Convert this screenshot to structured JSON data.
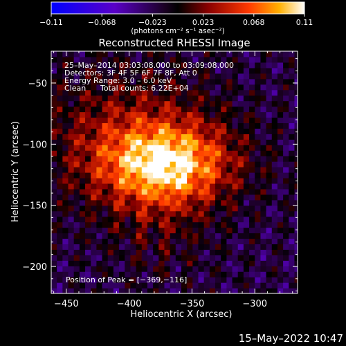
{
  "chart_data": {
    "type": "heatmap",
    "title": "Reconstructed RHESSI Image",
    "xlabel": "Heliocentric X (arcsec)",
    "ylabel": "Heliocentric Y (arcsec)",
    "xlim": [
      -462,
      -266
    ],
    "ylim": [
      -222,
      -24
    ],
    "xticks": [
      -450,
      -400,
      -350,
      -300
    ],
    "yticks": [
      -50,
      -100,
      -150,
      -200
    ],
    "xtick_labels": [
      "−450",
      "−400",
      "−350",
      "−300"
    ],
    "ytick_labels": [
      "−50",
      "−100",
      "−150",
      "−200"
    ],
    "colorbar": {
      "min": -0.11,
      "max": 0.11,
      "tick_labels": [
        "−0.11",
        "−0.068",
        "−0.023",
        "0.023",
        "0.068",
        "0.11"
      ],
      "units_label": "(photons cm⁻² s⁻¹ asec⁻²)"
    },
    "peak_position": [
      -369,
      -116
    ],
    "peak_value": 0.11,
    "colormap": "rhessi blue-white-red",
    "annotations": {
      "time_range": "25–May–2014 03:03:08.000 to 03:09:08.000",
      "detectors": "Detectors: 3F 4F 5F 6F 7F 8F, Att 0",
      "energy_range": "Energy Range: 3.0 – 6.0 keV",
      "clean_label": "Clean",
      "total_counts": "Total counts: 6.22E+04",
      "peak_label": "Position of Peak = [−369,−116]"
    }
  },
  "footer": {
    "date": "15–May–2022 10:47"
  },
  "colors": {
    "background": "#000000",
    "foreground": "#ffffff"
  }
}
